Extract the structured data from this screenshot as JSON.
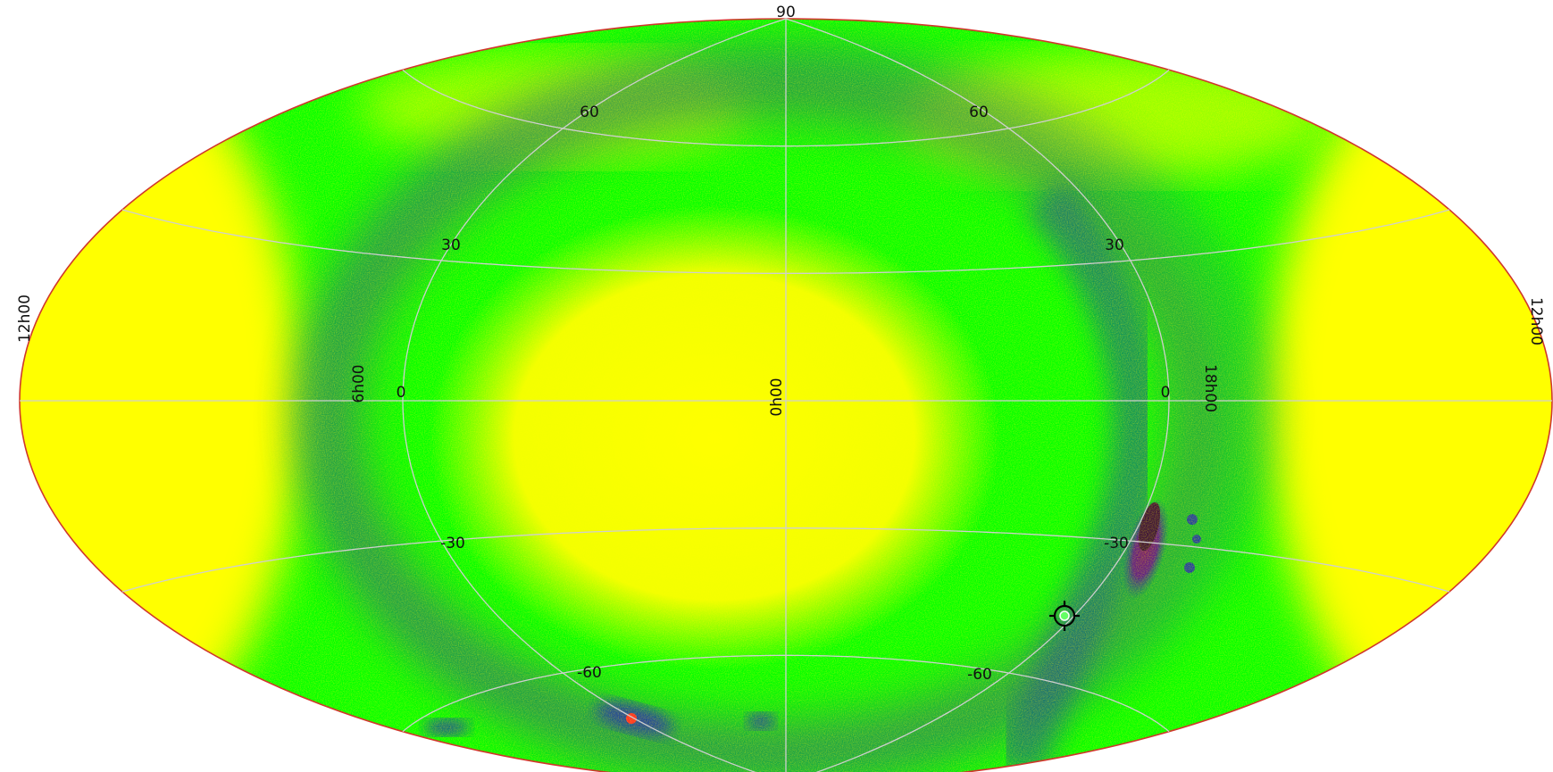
{
  "map": {
    "projection": "aitoff",
    "colors": {
      "outline": "#d0372b",
      "background": "#ffffff",
      "sky_low": "#ffff00",
      "sky_mid": "#00ff00",
      "sky_band": "#2f8a54",
      "sky_deep": "#1b3fa0",
      "sky_peak": "#7a1a6b",
      "hotspot": "#ff2a2a",
      "grid": "#cfcfcf"
    },
    "grid_labels": {
      "lat_top": "90",
      "lat_60_left": "60",
      "lat_60_right": "60",
      "lat_30_left": "30",
      "lat_30_right": "30",
      "lat_0_left": "0",
      "lat_0_right": "0",
      "lat_m30_left": "-30",
      "lat_m30_right": "-30",
      "lat_m60_left": "-60",
      "lat_m60_right": "-60",
      "ra_12_left": "12h00",
      "ra_6": "6h00",
      "ra_0": "0h00",
      "ra_18": "18h00",
      "ra_12_right": "12h00"
    },
    "marker": {
      "icon": "crosshair-target-icon"
    }
  }
}
